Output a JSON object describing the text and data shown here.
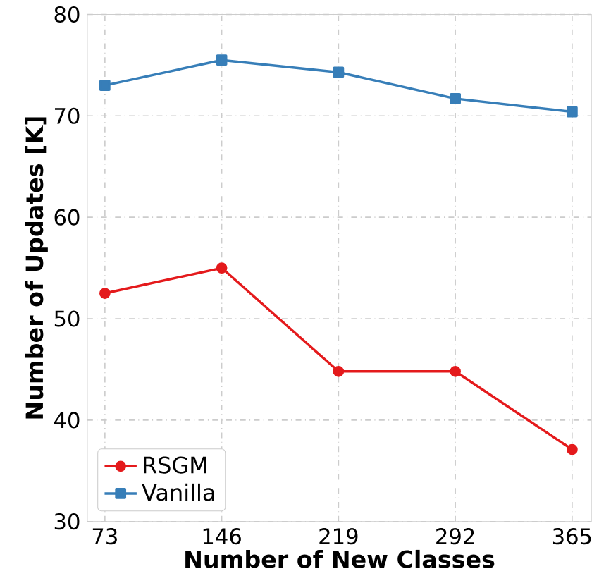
{
  "chart_data": {
    "type": "line",
    "xlabel": "Number of New Classes",
    "ylabel": "Number of Updates [K]",
    "x": [
      73,
      146,
      219,
      292,
      365
    ],
    "series": [
      {
        "name": "RSGM",
        "color": "#e41a1c",
        "marker": "circle",
        "values": [
          52.5,
          55,
          44.8,
          44.8,
          37.1
        ]
      },
      {
        "name": "Vanilla",
        "color": "#377eb8",
        "marker": "square",
        "values": [
          73,
          75.5,
          74.3,
          71.7,
          70.4
        ]
      }
    ],
    "xlim": [
      62,
      377
    ],
    "ylim": [
      30,
      80
    ],
    "xticks": [
      73,
      146,
      219,
      292,
      365
    ],
    "yticks": [
      30,
      40,
      50,
      60,
      70,
      80
    ],
    "grid": true,
    "legend": "bottom left",
    "line_style": "solid"
  }
}
